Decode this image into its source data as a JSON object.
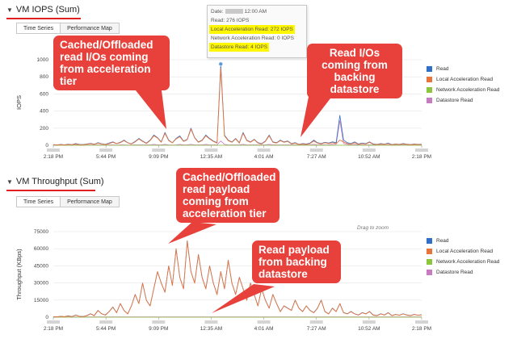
{
  "iops": {
    "title": "VM IOPS (Sum)",
    "tabs": [
      {
        "label": "Time Series"
      },
      {
        "label": "Performance Map"
      }
    ],
    "y_axis_label": "IOPS",
    "tooltip": {
      "date_label": "Date:",
      "date_time": "12:00 AM",
      "read": "Read: 276 IOPS",
      "local": "Local Acceleration Read: 272 IOPS",
      "network": "Network Acceleration Read: 0 IOPS",
      "datastore": "Datastore Read: 4 IOPS"
    },
    "callout_left": "Cached/Offloaded read I/Os coming from acceleration tier",
    "callout_right": "Read I/Os coming from backing datastore"
  },
  "throughput": {
    "title": "VM Throughput (Sum)",
    "tabs": [
      {
        "label": "Time Series"
      },
      {
        "label": "Performance Map"
      }
    ],
    "y_axis_label": "Throughput (KBps)",
    "drag_hint": "Drag to zoom",
    "callout_top": "Cached/Offloaded read payload coming from acceleration tier",
    "callout_right": "Read payload from backing datastore"
  },
  "legend": [
    {
      "label": "Read",
      "color": "#2f6fc6"
    },
    {
      "label": "Local Acceleration Read",
      "color": "#e8743b"
    },
    {
      "label": "Network Acceleration Read",
      "color": "#8cc63f"
    },
    {
      "label": "Datastore Read",
      "color": "#c77bc0"
    }
  ],
  "chart_data": [
    {
      "type": "line",
      "title": "VM IOPS (Sum)",
      "ylabel": "IOPS",
      "ylim": [
        0,
        1000
      ],
      "y_ticks": [
        "0",
        "200",
        "400",
        "600",
        "800",
        "1000"
      ],
      "x_ticks": [
        "2:18 PM",
        "5:44 PM",
        "9:09 PM",
        "12:35 AM",
        "4:01 AM",
        "7:27 AM",
        "10:52 AM",
        "2:18 PM"
      ],
      "x_range": [
        "2:18 PM",
        "2:18 PM"
      ],
      "legend": "right",
      "series": [
        {
          "name": "Read",
          "color": "#2f6fc6",
          "values": [
            8,
            5,
            10,
            6,
            12,
            7,
            20,
            10,
            8,
            15,
            22,
            12,
            30,
            18,
            10,
            25,
            40,
            20,
            35,
            60,
            30,
            18,
            45,
            80,
            50,
            25,
            60,
            120,
            90,
            40,
            150,
            60,
            30,
            80,
            110,
            50,
            70,
            200,
            90,
            40,
            60,
            120,
            80,
            50,
            30,
            950,
            120,
            60,
            40,
            80,
            30,
            150,
            60,
            40,
            70,
            30,
            20,
            50,
            120,
            40,
            30,
            60,
            40,
            50,
            20,
            30,
            10,
            20,
            15,
            25,
            60,
            30,
            20,
            35,
            25,
            40,
            30,
            350,
            60,
            30,
            20,
            40,
            15,
            25,
            20,
            40,
            15,
            10,
            20,
            12,
            25,
            8,
            15,
            10,
            20,
            12,
            8,
            15,
            10,
            12
          ]
        },
        {
          "name": "Local Acceleration Read",
          "color": "#e8743b",
          "values": [
            5,
            3,
            8,
            4,
            10,
            5,
            15,
            8,
            6,
            12,
            18,
            10,
            25,
            15,
            8,
            20,
            35,
            18,
            30,
            55,
            28,
            15,
            40,
            75,
            45,
            20,
            55,
            110,
            85,
            35,
            140,
            55,
            28,
            75,
            100,
            45,
            65,
            190,
            85,
            35,
            55,
            110,
            75,
            45,
            25,
            900,
            110,
            55,
            35,
            75,
            25,
            140,
            55,
            35,
            65,
            25,
            15,
            45,
            110,
            35,
            25,
            55,
            35,
            45,
            15,
            25,
            8,
            15,
            10,
            20,
            50,
            25,
            15,
            30,
            20,
            30,
            20,
            60,
            40,
            20,
            15,
            30,
            10,
            20,
            15,
            35,
            10,
            8,
            15,
            10,
            20,
            5,
            12,
            8,
            15,
            10,
            5,
            12,
            8,
            10
          ]
        },
        {
          "name": "Network Acceleration Read",
          "color": "#8cc63f",
          "values": [
            0,
            0,
            0,
            0,
            0,
            0,
            0,
            0,
            0,
            0,
            0,
            0,
            0,
            0,
            0,
            0,
            0,
            0,
            0,
            0,
            0,
            0,
            0,
            0,
            0,
            0,
            0,
            0,
            0,
            0,
            0,
            0,
            0,
            0,
            0,
            0,
            0,
            0,
            0,
            0,
            0,
            0,
            0,
            0,
            0,
            0,
            0,
            0,
            0,
            0,
            0,
            0,
            0,
            0,
            0,
            0,
            0,
            0,
            0,
            0,
            0,
            0,
            0,
            0,
            0,
            0,
            0,
            0,
            0,
            0,
            0,
            0,
            0,
            0,
            0,
            0,
            0,
            0,
            0,
            0,
            0,
            0,
            0,
            0,
            0,
            0,
            0,
            0,
            0,
            0,
            0,
            0,
            0,
            0,
            0,
            0,
            0,
            0,
            0,
            0
          ]
        },
        {
          "name": "Datastore Read",
          "color": "#c77bc0",
          "values": [
            3,
            2,
            2,
            2,
            2,
            2,
            5,
            2,
            2,
            3,
            4,
            2,
            5,
            3,
            2,
            5,
            5,
            2,
            5,
            5,
            2,
            3,
            5,
            5,
            5,
            5,
            5,
            10,
            5,
            5,
            10,
            5,
            2,
            5,
            10,
            5,
            5,
            10,
            5,
            5,
            5,
            10,
            5,
            5,
            5,
            50,
            10,
            5,
            5,
            5,
            5,
            10,
            5,
            5,
            5,
            5,
            5,
            5,
            10,
            5,
            5,
            5,
            5,
            5,
            5,
            5,
            2,
            5,
            5,
            5,
            10,
            5,
            5,
            5,
            5,
            10,
            10,
            290,
            20,
            10,
            5,
            10,
            5,
            5,
            5,
            5,
            5,
            2,
            5,
            2,
            5,
            3,
            3,
            2,
            5,
            2,
            3,
            3,
            2,
            2
          ]
        }
      ]
    },
    {
      "type": "line",
      "title": "VM Throughput (Sum)",
      "ylabel": "Throughput (KBps)",
      "ylim": [
        0,
        75000
      ],
      "y_ticks": [
        "0",
        "15000",
        "30000",
        "45000",
        "60000",
        "75000"
      ],
      "x_ticks": [
        "2:18 PM",
        "5:44 PM",
        "9:09 PM",
        "12:35 AM",
        "4:01 AM",
        "7:27 AM",
        "10:52 AM",
        "2:18 PM"
      ],
      "x_range": [
        "2:18 PM",
        "2:18 PM"
      ],
      "legend": "right",
      "series": [
        {
          "name": "Read",
          "color": "#2f6fc6",
          "values": [
            500,
            300,
            800,
            400,
            1200,
            500,
            2000,
            800,
            600,
            1500,
            3000,
            1500,
            6000,
            3000,
            2000,
            5000,
            9000,
            4000,
            12000,
            6000,
            3000,
            10000,
            20000,
            12000,
            30000,
            15000,
            10000,
            25000,
            40000,
            30000,
            22000,
            45000,
            28000,
            60000,
            35000,
            25000,
            67000,
            40000,
            30000,
            55000,
            35000,
            25000,
            45000,
            30000,
            20000,
            40000,
            25000,
            50000,
            30000,
            20000,
            35000,
            25000,
            15000,
            30000,
            20000,
            10000,
            25000,
            15000,
            8000,
            20000,
            12000,
            5000,
            10000,
            8000,
            6000,
            15000,
            8000,
            5000,
            10000,
            6000,
            4000,
            8000,
            15000,
            5000,
            3000,
            8000,
            5000,
            12000,
            4000,
            3000,
            5000,
            3000,
            2000,
            4000,
            3000,
            5000,
            2000,
            1500,
            3000,
            2000,
            4000,
            1500,
            2500,
            1800,
            3000,
            2000,
            1500,
            2500,
            1800,
            2200
          ]
        },
        {
          "name": "Local Acceleration Read",
          "color": "#e8743b",
          "values": [
            400,
            250,
            700,
            350,
            1000,
            450,
            1800,
            700,
            500,
            1300,
            2800,
            1300,
            5800,
            2800,
            1800,
            4800,
            8800,
            3800,
            11800,
            5800,
            2800,
            9800,
            19800,
            11800,
            29800,
            14800,
            9800,
            24800,
            39800,
            29800,
            21800,
            44800,
            27800,
            59800,
            34800,
            24800,
            66800,
            39800,
            29800,
            54800,
            34800,
            24800,
            44800,
            29800,
            19800,
            39800,
            24800,
            49800,
            29800,
            19800,
            34800,
            24800,
            14800,
            29800,
            19800,
            9800,
            24800,
            14800,
            7800,
            19800,
            11800,
            4800,
            9800,
            7800,
            5800,
            14800,
            7800,
            4800,
            9800,
            5800,
            3800,
            7800,
            14800,
            4800,
            2800,
            7800,
            4800,
            11800,
            3800,
            2800,
            4800,
            2800,
            1800,
            3800,
            2800,
            4800,
            1800,
            1300,
            2800,
            1800,
            3800,
            1300,
            2300,
            1600,
            2800,
            1800,
            1300,
            2300,
            1600,
            2000
          ]
        },
        {
          "name": "Network Acceleration Read",
          "color": "#8cc63f",
          "values": [
            0,
            0,
            0,
            0,
            0,
            0,
            0,
            0,
            0,
            0,
            0,
            0,
            0,
            0,
            0,
            0,
            0,
            0,
            0,
            0,
            0,
            0,
            0,
            0,
            0,
            0,
            0,
            0,
            0,
            0,
            0,
            0,
            0,
            0,
            0,
            0,
            0,
            0,
            0,
            0,
            0,
            0,
            0,
            0,
            0,
            0,
            0,
            0,
            0,
            0,
            0,
            0,
            0,
            0,
            0,
            0,
            0,
            0,
            0,
            0,
            0,
            0,
            0,
            0,
            0,
            0,
            0,
            0,
            0,
            0,
            0,
            0,
            0,
            0,
            0,
            0,
            0,
            0,
            0,
            0,
            0,
            0,
            0,
            0,
            0,
            0,
            0,
            0,
            0,
            0,
            0,
            0,
            0,
            0,
            0,
            0,
            0,
            0,
            0,
            0
          ]
        },
        {
          "name": "Datastore Read",
          "color": "#c77bc0",
          "values": [
            100,
            50,
            100,
            50,
            200,
            50,
            200,
            100,
            100,
            200,
            200,
            200,
            200,
            200,
            200,
            200,
            200,
            200,
            200,
            200,
            200,
            200,
            200,
            200,
            200,
            200,
            200,
            200,
            200,
            200,
            200,
            200,
            200,
            200,
            200,
            200,
            200,
            200,
            200,
            200,
            200,
            200,
            200,
            200,
            200,
            200,
            200,
            200,
            200,
            200,
            200,
            200,
            200,
            200,
            200,
            200,
            200,
            200,
            200,
            200,
            200,
            200,
            200,
            200,
            200,
            200,
            200,
            200,
            200,
            200,
            200,
            200,
            200,
            200,
            200,
            200,
            200,
            200,
            200,
            200,
            200,
            200,
            200,
            200,
            200,
            200,
            200,
            200,
            200,
            200,
            200,
            200,
            200,
            200,
            200,
            200,
            200,
            200,
            200,
            200
          ]
        }
      ]
    }
  ]
}
